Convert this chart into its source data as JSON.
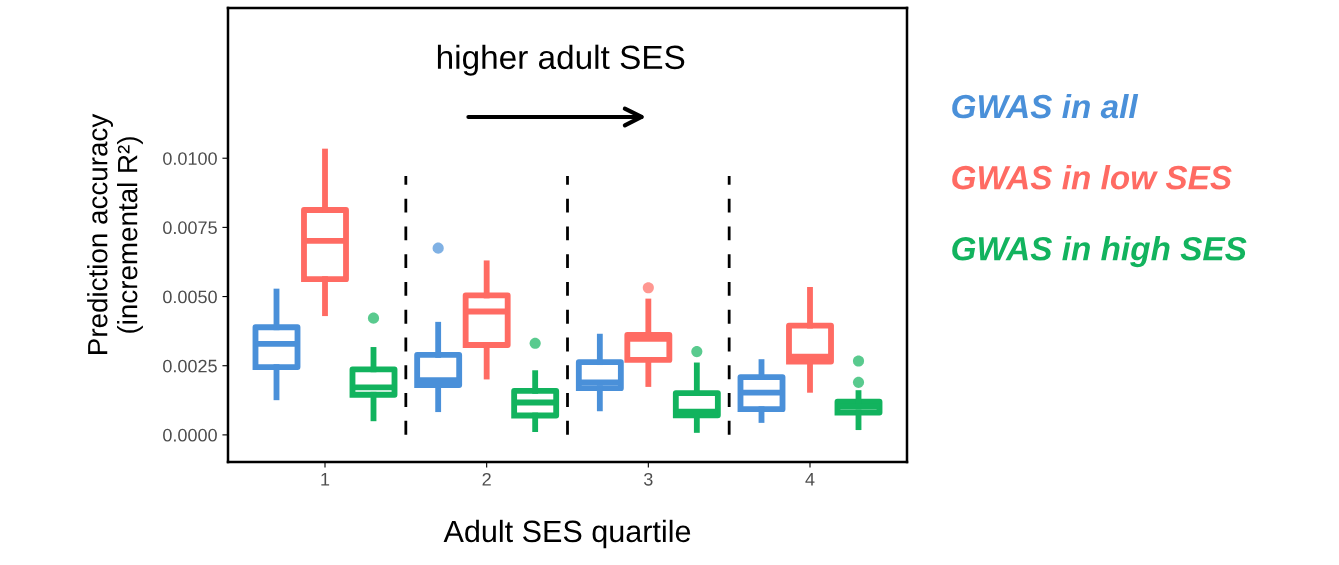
{
  "chart_data": {
    "type": "box",
    "xlabel": "Adult SES quartile",
    "ylabel": "Prediction accuracy\n(incremental R²)",
    "categories": [
      "1",
      "2",
      "3",
      "4"
    ],
    "ylim": [
      -0.00098,
      0.01543
    ],
    "yticks": [
      {
        "value": 0,
        "label": "0.0000"
      },
      {
        "value": 0.0025,
        "label": "0.0025"
      },
      {
        "value": 0.005,
        "label": "0.0050"
      },
      {
        "value": 0.0075,
        "label": "0.0075"
      },
      {
        "value": 0.01,
        "label": "0.0100"
      }
    ],
    "grid": false,
    "legend": "right",
    "annotations": [
      "higher adult SES"
    ],
    "series": [
      {
        "name": "GWAS in all",
        "color": "#4a90d9",
        "boxes": [
          {
            "low": 0.00136,
            "q1": 0.00245,
            "median": 0.00329,
            "q3": 0.00389,
            "high": 0.00518
          },
          {
            "low": 0.00093,
            "q1": 0.0018,
            "median": 0.00198,
            "q3": 0.00289,
            "high": 0.00398,
            "outliers": [
              0.00675
            ]
          },
          {
            "low": 0.00096,
            "q1": 0.00169,
            "median": 0.0019,
            "q3": 0.00263,
            "high": 0.00355
          },
          {
            "low": 0.00054,
            "q1": 0.00093,
            "median": 0.00153,
            "q3": 0.00209,
            "high": 0.00263
          }
        ]
      },
      {
        "name": "GWAS in low SES",
        "color": "#ff6b63",
        "boxes": [
          {
            "low": 0.0044,
            "q1": 0.00563,
            "median": 0.00701,
            "q3": 0.00813,
            "high": 0.01024
          },
          {
            "low": 0.00211,
            "q1": 0.00325,
            "median": 0.00446,
            "q3": 0.00504,
            "high": 0.0062
          },
          {
            "low": 0.00184,
            "q1": 0.00271,
            "median": 0.00347,
            "q3": 0.00361,
            "high": 0.00482,
            "outliers": [
              0.00532
            ]
          },
          {
            "low": 0.00163,
            "q1": 0.00265,
            "median": 0.00283,
            "q3": 0.00395,
            "high": 0.00524
          }
        ]
      },
      {
        "name": "GWAS in high SES",
        "color": "#12b35e",
        "boxes": [
          {
            "low": 0.0006,
            "q1": 0.00145,
            "median": 0.00172,
            "q3": 0.00237,
            "high": 0.00307,
            "outliers": [
              0.00422
            ]
          },
          {
            "low": 0.00021,
            "q1": 0.0007,
            "median": 0.00117,
            "q3": 0.00159,
            "high": 0.00223,
            "outliers": [
              0.00331
            ]
          },
          {
            "low": 0.00018,
            "q1": 0.00071,
            "median": 0.00084,
            "q3": 0.00151,
            "high": 0.00251,
            "outliers": [
              0.00301
            ]
          },
          {
            "low": 0.00028,
            "q1": 0.00081,
            "median": 0.00102,
            "q3": 0.0012,
            "high": 0.00151,
            "outliers": [
              0.0019,
              0.00267
            ]
          }
        ]
      }
    ]
  }
}
